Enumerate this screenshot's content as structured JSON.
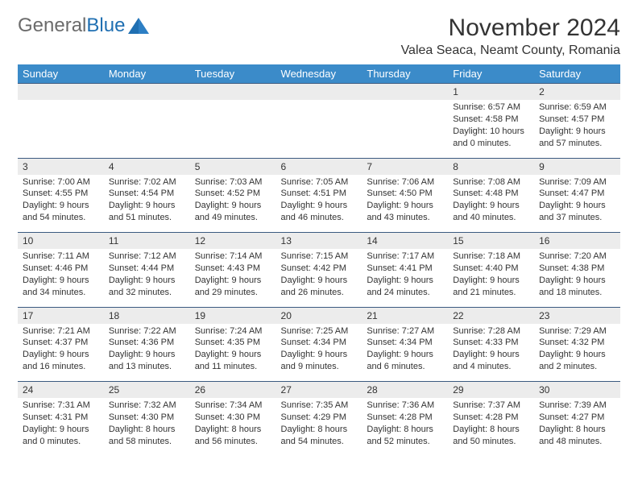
{
  "logo": {
    "gray": "General",
    "blue": "Blue"
  },
  "title": "November 2024",
  "location": "Valea Seaca, Neamt County, Romania",
  "colors": {
    "header_bg": "#3b8bc9",
    "header_text": "#ffffff",
    "daynum_bg": "#ececec",
    "row_border": "#3b5a80",
    "text": "#333333",
    "logo_gray": "#6b6b6b",
    "logo_blue": "#1f6fb2"
  },
  "columns": [
    "Sunday",
    "Monday",
    "Tuesday",
    "Wednesday",
    "Thursday",
    "Friday",
    "Saturday"
  ],
  "weeks": [
    [
      null,
      null,
      null,
      null,
      null,
      {
        "n": "1",
        "sr": "6:57 AM",
        "ss": "4:58 PM",
        "dl": "10 hours and 0 minutes."
      },
      {
        "n": "2",
        "sr": "6:59 AM",
        "ss": "4:57 PM",
        "dl": "9 hours and 57 minutes."
      }
    ],
    [
      {
        "n": "3",
        "sr": "7:00 AM",
        "ss": "4:55 PM",
        "dl": "9 hours and 54 minutes."
      },
      {
        "n": "4",
        "sr": "7:02 AM",
        "ss": "4:54 PM",
        "dl": "9 hours and 51 minutes."
      },
      {
        "n": "5",
        "sr": "7:03 AM",
        "ss": "4:52 PM",
        "dl": "9 hours and 49 minutes."
      },
      {
        "n": "6",
        "sr": "7:05 AM",
        "ss": "4:51 PM",
        "dl": "9 hours and 46 minutes."
      },
      {
        "n": "7",
        "sr": "7:06 AM",
        "ss": "4:50 PM",
        "dl": "9 hours and 43 minutes."
      },
      {
        "n": "8",
        "sr": "7:08 AM",
        "ss": "4:48 PM",
        "dl": "9 hours and 40 minutes."
      },
      {
        "n": "9",
        "sr": "7:09 AM",
        "ss": "4:47 PM",
        "dl": "9 hours and 37 minutes."
      }
    ],
    [
      {
        "n": "10",
        "sr": "7:11 AM",
        "ss": "4:46 PM",
        "dl": "9 hours and 34 minutes."
      },
      {
        "n": "11",
        "sr": "7:12 AM",
        "ss": "4:44 PM",
        "dl": "9 hours and 32 minutes."
      },
      {
        "n": "12",
        "sr": "7:14 AM",
        "ss": "4:43 PM",
        "dl": "9 hours and 29 minutes."
      },
      {
        "n": "13",
        "sr": "7:15 AM",
        "ss": "4:42 PM",
        "dl": "9 hours and 26 minutes."
      },
      {
        "n": "14",
        "sr": "7:17 AM",
        "ss": "4:41 PM",
        "dl": "9 hours and 24 minutes."
      },
      {
        "n": "15",
        "sr": "7:18 AM",
        "ss": "4:40 PM",
        "dl": "9 hours and 21 minutes."
      },
      {
        "n": "16",
        "sr": "7:20 AM",
        "ss": "4:38 PM",
        "dl": "9 hours and 18 minutes."
      }
    ],
    [
      {
        "n": "17",
        "sr": "7:21 AM",
        "ss": "4:37 PM",
        "dl": "9 hours and 16 minutes."
      },
      {
        "n": "18",
        "sr": "7:22 AM",
        "ss": "4:36 PM",
        "dl": "9 hours and 13 minutes."
      },
      {
        "n": "19",
        "sr": "7:24 AM",
        "ss": "4:35 PM",
        "dl": "9 hours and 11 minutes."
      },
      {
        "n": "20",
        "sr": "7:25 AM",
        "ss": "4:34 PM",
        "dl": "9 hours and 9 minutes."
      },
      {
        "n": "21",
        "sr": "7:27 AM",
        "ss": "4:34 PM",
        "dl": "9 hours and 6 minutes."
      },
      {
        "n": "22",
        "sr": "7:28 AM",
        "ss": "4:33 PM",
        "dl": "9 hours and 4 minutes."
      },
      {
        "n": "23",
        "sr": "7:29 AM",
        "ss": "4:32 PM",
        "dl": "9 hours and 2 minutes."
      }
    ],
    [
      {
        "n": "24",
        "sr": "7:31 AM",
        "ss": "4:31 PM",
        "dl": "9 hours and 0 minutes."
      },
      {
        "n": "25",
        "sr": "7:32 AM",
        "ss": "4:30 PM",
        "dl": "8 hours and 58 minutes."
      },
      {
        "n": "26",
        "sr": "7:34 AM",
        "ss": "4:30 PM",
        "dl": "8 hours and 56 minutes."
      },
      {
        "n": "27",
        "sr": "7:35 AM",
        "ss": "4:29 PM",
        "dl": "8 hours and 54 minutes."
      },
      {
        "n": "28",
        "sr": "7:36 AM",
        "ss": "4:28 PM",
        "dl": "8 hours and 52 minutes."
      },
      {
        "n": "29",
        "sr": "7:37 AM",
        "ss": "4:28 PM",
        "dl": "8 hours and 50 minutes."
      },
      {
        "n": "30",
        "sr": "7:39 AM",
        "ss": "4:27 PM",
        "dl": "8 hours and 48 minutes."
      }
    ]
  ],
  "labels": {
    "sunrise": "Sunrise:",
    "sunset": "Sunset:",
    "daylight": "Daylight:"
  }
}
